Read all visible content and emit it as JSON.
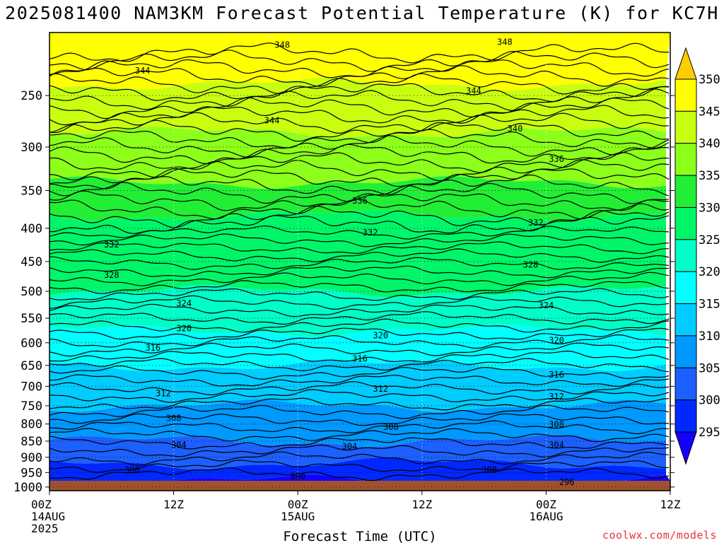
{
  "title": "2025081400 NAM3KM Forecast Potential Temperature (K) for KC7H",
  "credit": "coolwx.com/models",
  "chart_data": {
    "type": "heatmap",
    "title": "2025081400 NAM3KM Forecast Potential Temperature (K) for KC7H",
    "xlabel": "Forecast Time (UTC)",
    "ylabel": "",
    "x_ticks": [
      {
        "hour": 0,
        "lines": [
          "00Z",
          "14AUG",
          "2025"
        ]
      },
      {
        "hour": 12,
        "lines": [
          "12Z"
        ]
      },
      {
        "hour": 24,
        "lines": [
          "00Z",
          "15AUG"
        ]
      },
      {
        "hour": 36,
        "lines": [
          "12Z"
        ]
      },
      {
        "hour": 48,
        "lines": [
          "00Z",
          "16AUG"
        ]
      },
      {
        "hour": 60,
        "lines": [
          "12Z"
        ]
      }
    ],
    "xlim": [
      0,
      60
    ],
    "y_ticks": [
      "250",
      "300",
      "350",
      "400",
      "450",
      "500",
      "550",
      "600",
      "650",
      "700",
      "750",
      "800",
      "850",
      "900",
      "950",
      "1000"
    ],
    "ylim": [
      1013,
      200
    ],
    "y_scale": "log",
    "colorbar": {
      "labels": [
        "350",
        "345",
        "340",
        "335",
        "330",
        "325",
        "320",
        "315",
        "310",
        "305",
        "300",
        "295"
      ],
      "bands": [
        {
          "range": [
            345,
            350
          ],
          "color": "#ffff00"
        },
        {
          "range": [
            340,
            345
          ],
          "color": "#c8ff10"
        },
        {
          "range": [
            335,
            340
          ],
          "color": "#8cff1a"
        },
        {
          "range": [
            330,
            335
          ],
          "color": "#22ee36"
        },
        {
          "range": [
            325,
            330
          ],
          "color": "#00f668"
        },
        {
          "range": [
            320,
            325
          ],
          "color": "#00ffc8"
        },
        {
          "range": [
            315,
            320
          ],
          "color": "#00ffff"
        },
        {
          "range": [
            310,
            315
          ],
          "color": "#00ccff"
        },
        {
          "range": [
            305,
            310
          ],
          "color": "#0099ff"
        },
        {
          "range": [
            300,
            305
          ],
          "color": "#1c60ff"
        },
        {
          "range": [
            295,
            300
          ],
          "color": "#0028ff"
        },
        {
          "range": [
            290,
            295
          ],
          "color": "#0000ee"
        }
      ],
      "over_color": "#ffcc00",
      "under_color": "#1400ff"
    },
    "ground_color": "#a0522d",
    "bands_by_pressure": [
      {
        "p_top": 200,
        "p_bottom": 240,
        "color": "#ffff00"
      },
      {
        "p_top": 240,
        "p_bottom": 285,
        "color": "#c8ff10"
      },
      {
        "p_top": 285,
        "p_bottom": 340,
        "color": "#8cff1a"
      },
      {
        "p_top": 340,
        "p_bottom": 382,
        "color": "#22ee36"
      },
      {
        "p_top": 382,
        "p_bottom": 500,
        "color": "#00f668"
      },
      {
        "p_top": 500,
        "p_bottom": 575,
        "color": "#00ffc8"
      },
      {
        "p_top": 575,
        "p_bottom": 650,
        "color": "#00ffff"
      },
      {
        "p_top": 650,
        "p_bottom": 750,
        "color": "#00ccff"
      },
      {
        "p_top": 750,
        "p_bottom": 850,
        "color": "#0099ff"
      },
      {
        "p_top": 850,
        "p_bottom": 920,
        "color": "#1c60ff"
      },
      {
        "p_top": 920,
        "p_bottom": 990,
        "color": "#0028ff"
      },
      {
        "p_top": 990,
        "p_bottom": 1013,
        "color": "#1400ff"
      }
    ],
    "contour_labels": [
      {
        "text": "348",
        "hour": 22.5,
        "p": 209
      },
      {
        "text": "348",
        "hour": 44,
        "p": 207
      },
      {
        "text": "344",
        "hour": 9,
        "p": 229
      },
      {
        "text": "344",
        "hour": 41,
        "p": 246
      },
      {
        "text": "344",
        "hour": 21.5,
        "p": 273
      },
      {
        "text": "340",
        "hour": 45,
        "p": 281
      },
      {
        "text": "336",
        "hour": 49,
        "p": 313
      },
      {
        "text": "336",
        "hour": 30,
        "p": 363
      },
      {
        "text": "332",
        "hour": 6,
        "p": 424
      },
      {
        "text": "332",
        "hour": 31,
        "p": 406
      },
      {
        "text": "332",
        "hour": 47,
        "p": 392
      },
      {
        "text": "328",
        "hour": 6,
        "p": 472
      },
      {
        "text": "328",
        "hour": 46.5,
        "p": 455
      },
      {
        "text": "324",
        "hour": 13,
        "p": 522
      },
      {
        "text": "324",
        "hour": 48,
        "p": 526
      },
      {
        "text": "320",
        "hour": 13,
        "p": 570
      },
      {
        "text": "320",
        "hour": 32,
        "p": 585
      },
      {
        "text": "320",
        "hour": 49,
        "p": 595
      },
      {
        "text": "316",
        "hour": 10,
        "p": 611
      },
      {
        "text": "316",
        "hour": 30,
        "p": 635
      },
      {
        "text": "316",
        "hour": 49,
        "p": 672
      },
      {
        "text": "312",
        "hour": 11,
        "p": 718
      },
      {
        "text": "312",
        "hour": 32,
        "p": 706
      },
      {
        "text": "312",
        "hour": 49,
        "p": 726
      },
      {
        "text": "308",
        "hour": 12,
        "p": 784
      },
      {
        "text": "308",
        "hour": 33,
        "p": 809
      },
      {
        "text": "308",
        "hour": 49,
        "p": 802
      },
      {
        "text": "304",
        "hour": 12.5,
        "p": 862
      },
      {
        "text": "304",
        "hour": 29,
        "p": 866
      },
      {
        "text": "304",
        "hour": 49,
        "p": 862
      },
      {
        "text": "300",
        "hour": 8,
        "p": 942
      },
      {
        "text": "300",
        "hour": 24,
        "p": 963
      },
      {
        "text": "300",
        "hour": 42.5,
        "p": 941
      },
      {
        "text": "296",
        "hour": 50,
        "p": 983
      }
    ]
  }
}
